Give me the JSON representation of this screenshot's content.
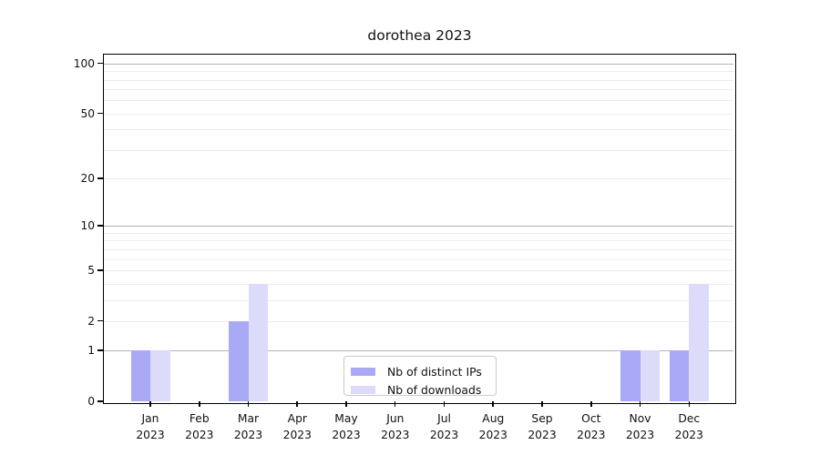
{
  "chart_data": {
    "type": "bar",
    "title": "dorothea 2023",
    "categories": [
      "Jan 2023",
      "Feb 2023",
      "Mar 2023",
      "Apr 2023",
      "May 2023",
      "Jun 2023",
      "Jul 2023",
      "Aug 2023",
      "Sep 2023",
      "Oct 2023",
      "Nov 2023",
      "Dec 2023"
    ],
    "series": [
      {
        "name": "Nb of distinct IPs",
        "values": [
          1,
          0,
          2,
          0,
          0,
          0,
          0,
          0,
          0,
          0,
          1,
          1
        ],
        "color": "#a9a9f6"
      },
      {
        "name": "Nb of downloads",
        "values": [
          1,
          0,
          4,
          0,
          0,
          0,
          0,
          0,
          0,
          0,
          1,
          4
        ],
        "color": "#dcdbf9"
      }
    ],
    "xlabel": "",
    "ylabel": "",
    "yscale": "log10(1+x)",
    "ylim": [
      0,
      113
    ],
    "yticks": [
      0,
      1,
      2,
      5,
      10,
      20,
      50,
      100
    ],
    "grid": {
      "major": [
        1,
        10,
        100
      ],
      "minor": [
        2,
        3,
        4,
        5,
        6,
        7,
        8,
        9,
        20,
        30,
        40,
        50,
        60,
        70,
        80,
        90
      ]
    },
    "legend_position": "lower center",
    "colors": {
      "axis": "#000000",
      "major_grid": "#b4b4b4",
      "minor_grid": "#ececec",
      "legend_border": "#cccccc",
      "text": "#111111"
    }
  }
}
